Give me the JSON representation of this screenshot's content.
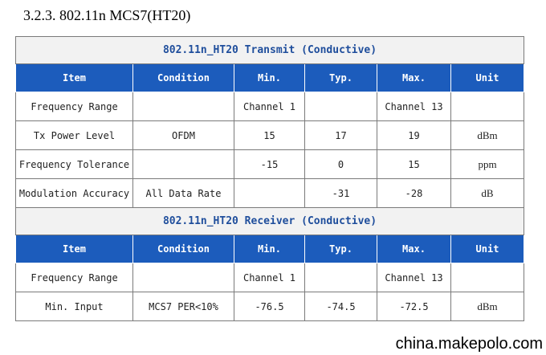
{
  "heading": "3.2.3. 802.11n MCS7(HT20)",
  "transmit": {
    "title": "802.11n_HT20 Transmit (Conductive)",
    "columns": [
      "Item",
      "Condition",
      "Min.",
      "Typ.",
      "Max.",
      "Unit"
    ],
    "rows": [
      [
        "Frequency Range",
        "",
        "Channel 1",
        "",
        "Channel 13",
        ""
      ],
      [
        "Tx Power Level",
        "OFDM",
        "15",
        "17",
        "19",
        "dBm"
      ],
      [
        "Frequency Tolerance",
        "",
        "-15",
        "0",
        "15",
        "ppm"
      ],
      [
        "Modulation Accuracy",
        "All Data Rate",
        "",
        "-31",
        "-28",
        "dB"
      ]
    ]
  },
  "receiver": {
    "title": "802.11n_HT20 Receiver (Conductive)",
    "columns": [
      "Item",
      "Condition",
      "Min.",
      "Typ.",
      "Max.",
      "Unit"
    ],
    "rows": [
      [
        "Frequency Range",
        "",
        "Channel 1",
        "",
        "Channel 13",
        ""
      ],
      [
        "Min. Input",
        "MCS7 PER<10%",
        "-76.5",
        "-74.5",
        "-72.5",
        "dBm"
      ]
    ]
  },
  "watermark": "china.makepolo.com"
}
